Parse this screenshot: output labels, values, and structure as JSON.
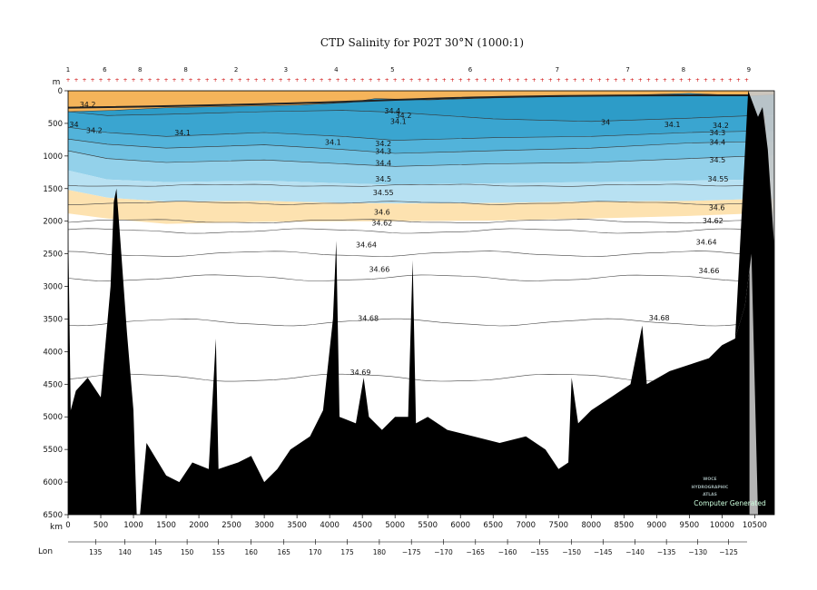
{
  "chart_data": {
    "type": "heatmap",
    "title": "CTD Salinity for P02T 30°N (1000:1)",
    "y_unit_label": "m",
    "x_unit_label": "km",
    "lon_label": "Lon",
    "ylim": [
      6500,
      0
    ],
    "xlim": [
      0,
      10800
    ],
    "y_ticks": [
      0,
      500,
      1000,
      1500,
      2000,
      2500,
      3000,
      3500,
      4000,
      4500,
      5000,
      5500,
      6000,
      6500
    ],
    "x_ticks": [
      0,
      500,
      1000,
      1500,
      2000,
      2500,
      3000,
      3500,
      4000,
      4500,
      5000,
      5500,
      6000,
      6500,
      7000,
      7500,
      8000,
      8500,
      9000,
      9500,
      10000,
      10500
    ],
    "lon_ticks": [
      {
        "km": 420,
        "label": "135"
      },
      {
        "km": 870,
        "label": "140"
      },
      {
        "km": 1340,
        "label": "145"
      },
      {
        "km": 1820,
        "label": "150"
      },
      {
        "km": 2300,
        "label": "155"
      },
      {
        "km": 2800,
        "label": "160"
      },
      {
        "km": 3300,
        "label": "165"
      },
      {
        "km": 3780,
        "label": "170"
      },
      {
        "km": 4270,
        "label": "175"
      },
      {
        "km": 4760,
        "label": "180"
      },
      {
        "km": 5250,
        "label": "−175"
      },
      {
        "km": 5740,
        "label": "−170"
      },
      {
        "km": 6230,
        "label": "−165"
      },
      {
        "km": 6720,
        "label": "−160"
      },
      {
        "km": 7210,
        "label": "−155"
      },
      {
        "km": 7700,
        "label": "−150"
      },
      {
        "km": 8180,
        "label": "−145"
      },
      {
        "km": 8670,
        "label": "−140"
      },
      {
        "km": 9150,
        "label": "−135"
      },
      {
        "km": 9630,
        "label": "−130"
      },
      {
        "km": 10100,
        "label": "−125"
      }
    ],
    "station_labels": [
      {
        "km": 0,
        "label": "1"
      },
      {
        "km": 560,
        "label": "6"
      },
      {
        "km": 1100,
        "label": "8"
      },
      {
        "km": 1800,
        "label": "8"
      },
      {
        "km": 2570,
        "label": "2"
      },
      {
        "km": 3330,
        "label": "3"
      },
      {
        "km": 4100,
        "label": "4"
      },
      {
        "km": 4960,
        "label": "5"
      },
      {
        "km": 6150,
        "label": "6"
      },
      {
        "km": 7480,
        "label": "7"
      },
      {
        "km": 8560,
        "label": "7"
      },
      {
        "km": 9410,
        "label": "8"
      },
      {
        "km": 10410,
        "label": "9"
      }
    ],
    "color_bands": [
      {
        "min": 34.0,
        "max": 34.2,
        "color": "#2d9cc8"
      },
      {
        "min": 34.2,
        "max": 34.3,
        "color": "#3aa5d0"
      },
      {
        "min": 34.3,
        "max": 34.4,
        "color": "#52b3da"
      },
      {
        "min": 34.4,
        "max": 34.5,
        "color": "#6fc1e2"
      },
      {
        "min": 34.5,
        "max": 34.55,
        "color": "#93d1ea"
      },
      {
        "min": 34.55,
        "max": 34.6,
        "color": "#b8e1f2"
      },
      {
        "min": 34.6,
        "max": 35.0,
        "color": "#fde2b0"
      }
    ],
    "surface_color": "#f5b45a",
    "bottom_color": "#000000",
    "contour_levels": [
      {
        "value": 34.5,
        "depth": 1450
      },
      {
        "value": 34.55,
        "depth": 1720
      },
      {
        "value": 34.6,
        "depth": 2000
      },
      {
        "value": 34.62,
        "depth": 2150
      },
      {
        "value": 34.64,
        "depth": 2500
      },
      {
        "value": 34.66,
        "depth": 2870
      },
      {
        "value": 34.68,
        "depth": 3550
      },
      {
        "value": 34.69,
        "depth": 4400
      }
    ],
    "contour_labels": [
      {
        "text": "34.2",
        "km": 400,
        "depth": 650
      },
      {
        "text": "34.1",
        "km": 1750,
        "depth": 680
      },
      {
        "text": "34.1",
        "km": 4050,
        "depth": 830
      },
      {
        "text": "34.2",
        "km": 4820,
        "depth": 850
      },
      {
        "text": "34.3",
        "km": 4820,
        "depth": 970
      },
      {
        "text": "34.4",
        "km": 4820,
        "depth": 1150
      },
      {
        "text": "34.5",
        "km": 4820,
        "depth": 1390
      },
      {
        "text": "34.55",
        "km": 4820,
        "depth": 1600
      },
      {
        "text": "34.6",
        "km": 4800,
        "depth": 1900
      },
      {
        "text": "34.62",
        "km": 4800,
        "depth": 2070
      },
      {
        "text": "34.64",
        "km": 4560,
        "depth": 2400
      },
      {
        "text": "34.66",
        "km": 4760,
        "depth": 2780
      },
      {
        "text": "34.68",
        "km": 4590,
        "depth": 3530
      },
      {
        "text": "34.69",
        "km": 4470,
        "depth": 4360
      },
      {
        "text": "34.4",
        "km": 4960,
        "depth": 350
      },
      {
        "text": "34.2",
        "km": 5130,
        "depth": 420
      },
      {
        "text": "34.1",
        "km": 5050,
        "depth": 510
      },
      {
        "text": "34",
        "km": 8220,
        "depth": 520
      },
      {
        "text": "34.1",
        "km": 9240,
        "depth": 560
      },
      {
        "text": "34.2",
        "km": 9980,
        "depth": 570
      },
      {
        "text": "34.3",
        "km": 9930,
        "depth": 680
      },
      {
        "text": "34.4",
        "km": 9930,
        "depth": 830
      },
      {
        "text": "34.5",
        "km": 9930,
        "depth": 1100
      },
      {
        "text": "34.55",
        "km": 9940,
        "depth": 1390
      },
      {
        "text": "34.6",
        "km": 9920,
        "depth": 1830
      },
      {
        "text": "34.62",
        "km": 9860,
        "depth": 2030
      },
      {
        "text": "34.64",
        "km": 9760,
        "depth": 2360
      },
      {
        "text": "34.66",
        "km": 9800,
        "depth": 2800
      },
      {
        "text": "34.68",
        "km": 9040,
        "depth": 3520
      },
      {
        "text": "34",
        "km": 90,
        "depth": 560
      },
      {
        "text": "34.2",
        "km": 300,
        "depth": 250
      }
    ],
    "watermark": {
      "line1": "WOCE",
      "line2": "HYDROGRAPHIC",
      "line3": "ATLAS",
      "line4": "Computer Generated"
    }
  }
}
